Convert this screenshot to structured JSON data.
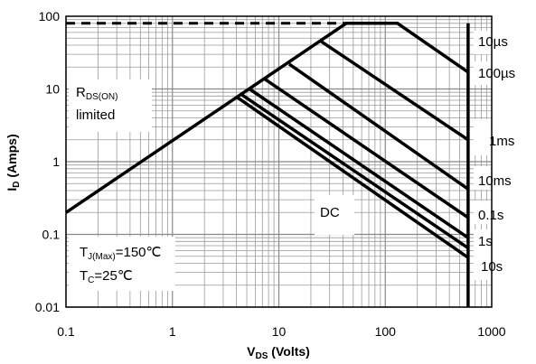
{
  "chart_data": {
    "type": "line",
    "xscale": "log",
    "yscale": "log",
    "xlim": [
      0.1,
      1000
    ],
    "ylim": [
      0.01,
      100
    ],
    "grid": true,
    "xlabel": {
      "main": "V",
      "sub": "DS",
      "rest": " (Volts)"
    },
    "ylabel": {
      "main": "I",
      "sub": "D",
      "rest": " (Amps)"
    },
    "xticks": [
      {
        "value": 0.1,
        "label": "0.1"
      },
      {
        "value": 1,
        "label": "1"
      },
      {
        "value": 10,
        "label": "10"
      },
      {
        "value": 100,
        "label": "100"
      },
      {
        "value": 1000,
        "label": "1000"
      }
    ],
    "yticks": [
      {
        "value": 0.01,
        "label": "0.01"
      },
      {
        "value": 0.1,
        "label": "0.1"
      },
      {
        "value": 1,
        "label": "1"
      },
      {
        "value": 10,
        "label": "10"
      },
      {
        "value": 100,
        "label": "100"
      }
    ],
    "series": [
      {
        "name": "10µs",
        "dashed": false,
        "points": [
          [
            0.1,
            0.2
          ],
          [
            43,
            80
          ],
          [
            130,
            80
          ],
          [
            600,
            17
          ]
        ]
      },
      {
        "name": "100µs",
        "dashed": false,
        "points": [
          [
            25,
            45
          ],
          [
            600,
            2
          ]
        ]
      },
      {
        "name": "1ms",
        "dashed": false,
        "points": [
          [
            12.5,
            22
          ],
          [
            600,
            0.42
          ]
        ]
      },
      {
        "name": "10ms",
        "dashed": false,
        "points": [
          [
            7.2,
            14
          ],
          [
            600,
            0.17
          ]
        ]
      },
      {
        "name": "0.1s",
        "dashed": false,
        "points": [
          [
            5.3,
            10
          ],
          [
            600,
            0.09
          ]
        ]
      },
      {
        "name": "1s",
        "dashed": false,
        "points": [
          [
            4.4,
            8.5
          ],
          [
            600,
            0.065
          ]
        ]
      },
      {
        "name": "DC",
        "dashed": false,
        "points": [
          [
            4,
            7.8
          ],
          [
            600,
            0.048
          ]
        ]
      },
      {
        "name": "",
        "dashed": true,
        "points": [
          [
            0.1,
            80
          ],
          [
            43,
            80
          ]
        ]
      },
      {
        "name": "",
        "dashed": false,
        "points": [
          [
            600,
            80
          ],
          [
            600,
            0.01
          ]
        ]
      }
    ],
    "annotations": {
      "curve_labels": [
        {
          "text": "10µs",
          "x": 950,
          "y": 50
        },
        {
          "text": "100µs",
          "x": 950,
          "y": 8
        },
        {
          "text": "1ms",
          "x": 950,
          "y": 1.4
        },
        {
          "text": "10ms",
          "x": 950,
          "y": 0.5
        },
        {
          "text": "0.1s",
          "x": 950,
          "y": 0.17
        },
        {
          "text": "1s",
          "x": 950,
          "y": 0.078
        },
        {
          "text": "10s",
          "x": 950,
          "y": 0.038
        },
        {
          "text": "DC",
          "x": 60,
          "y": 0.19
        }
      ],
      "rds": {
        "main": "R",
        "sub": "DS(ON)",
        "line2": "limited"
      },
      "conditions": {
        "tj_main": "T",
        "tj_sub": "J(Max)",
        "tj_rest": "=150℃",
        "tc_main": "T",
        "tc_sub": "C",
        "tc_rest": "=25℃"
      }
    }
  }
}
